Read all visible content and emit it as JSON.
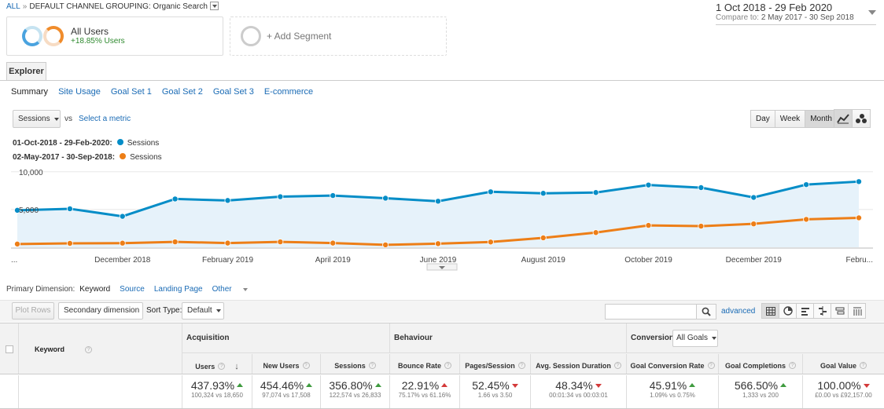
{
  "breadcrumb": {
    "root": "ALL",
    "separator": "»",
    "current": "DEFAULT CHANNEL GROUPING: Organic Search"
  },
  "date_range": {
    "primary": "1 Oct 2018 - 29 Feb 2020",
    "compare_label": "Compare to:",
    "compare": "2 May 2017 - 30 Sep 2018"
  },
  "segments": {
    "all_users": "All Users",
    "all_users_delta": "+18.85% Users",
    "add_segment": "+ Add Segment"
  },
  "explorer_tab": "Explorer",
  "subtabs": [
    "Summary",
    "Site Usage",
    "Goal Set 1",
    "Goal Set 2",
    "Goal Set 3",
    "E-commerce"
  ],
  "metric": {
    "selected": "Sessions",
    "vs": "vs",
    "select_metric": "Select a metric"
  },
  "period_buttons": [
    "Day",
    "Week",
    "Month"
  ],
  "period_active": "Month",
  "legend": {
    "primary_range": "01-Oct-2018 - 29-Feb-2020:",
    "primary_series": "Sessions",
    "compare_range": "02-May-2017 - 30-Sep-2018:",
    "compare_series": "Sessions"
  },
  "colors": {
    "primary": "#058dc7",
    "compare": "#ed7e17",
    "link": "#1a6bb5",
    "up": "#3f9b3f",
    "down": "#d43a3a"
  },
  "chart_data": {
    "type": "line",
    "x": [
      "Oct 2018",
      "Nov 2018",
      "Dec 2018",
      "Jan 2019",
      "Feb 2019",
      "Mar 2019",
      "Apr 2019",
      "May 2019",
      "Jun 2019",
      "Jul 2019",
      "Aug 2019",
      "Sep 2019",
      "Oct 2019",
      "Nov 2019",
      "Dec 2019",
      "Jan 2020",
      "Feb 2020"
    ],
    "x_tick_labels": [
      "...",
      "December 2018",
      "February 2019",
      "April 2019",
      "June 2019",
      "August 2019",
      "October 2019",
      "December 2019",
      "Febru..."
    ],
    "y_tick_labels": [
      "10,000",
      "5,000"
    ],
    "ylim": [
      0,
      10500
    ],
    "series": [
      {
        "name": "Sessions",
        "color": "#058dc7",
        "area": true,
        "values": [
          4900,
          5100,
          4100,
          6400,
          6200,
          6700,
          6850,
          6500,
          6100,
          7350,
          7150,
          7250,
          8250,
          7900,
          6600,
          8300,
          8700
        ]
      },
      {
        "name": "Sessions",
        "color": "#ed7e17",
        "area": false,
        "values": [
          430,
          520,
          550,
          720,
          560,
          720,
          560,
          320,
          480,
          700,
          1250,
          1950,
          2900,
          2800,
          3100,
          3700,
          3900
        ]
      }
    ]
  },
  "primary_dimension": {
    "label": "Primary Dimension:",
    "current": "Keyword",
    "options": [
      "Source",
      "Landing Page",
      "Other"
    ]
  },
  "toolbar": {
    "plot_rows": "Plot Rows",
    "secondary_dimension": "Secondary dimension",
    "sort_label": "Sort Type:",
    "sort_value": "Default",
    "advanced": "advanced"
  },
  "table": {
    "keyword_header": "Keyword",
    "groups": {
      "acquisition": "Acquisition",
      "behaviour": "Behaviour",
      "conversions": "Conversions",
      "goal_select": "All Goals"
    },
    "columns": [
      {
        "label": "Users",
        "value": "437.93%",
        "trend": "up-good",
        "detail": "100,324 vs 18,650"
      },
      {
        "label": "New Users",
        "value": "454.46%",
        "trend": "up-good",
        "detail": "97,074 vs 17,508"
      },
      {
        "label": "Sessions",
        "value": "356.80%",
        "trend": "up-good",
        "detail": "122,574 vs 26,833"
      },
      {
        "label": "Bounce Rate",
        "value": "22.91%",
        "trend": "up-bad",
        "detail": "75.17% vs 61.16%"
      },
      {
        "label": "Pages/Session",
        "value": "52.45%",
        "trend": "down",
        "detail": "1.66 vs 3.50"
      },
      {
        "label": "Avg. Session Duration",
        "value": "48.34%",
        "trend": "down",
        "detail": "00:01:34 vs 00:03:01"
      },
      {
        "label": "Goal Conversion Rate",
        "value": "45.91%",
        "trend": "up-good",
        "detail": "1.09% vs 0.75%"
      },
      {
        "label": "Goal Completions",
        "value": "566.50%",
        "trend": "up-good",
        "detail": "1,333 vs 200"
      },
      {
        "label": "Goal Value",
        "value": "100.00%",
        "trend": "down",
        "detail": "£0.00 vs £92,157.00"
      }
    ]
  }
}
